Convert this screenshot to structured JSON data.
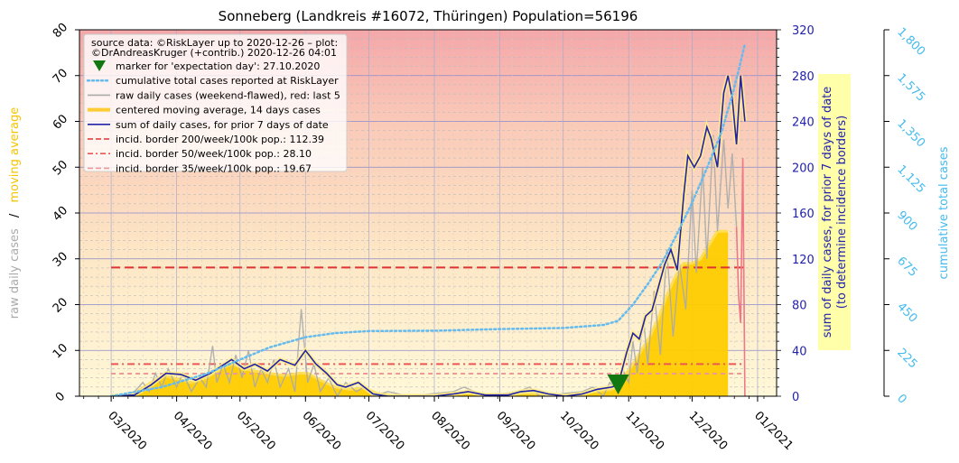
{
  "chart_data": {
    "type": "line",
    "title": "Sonneberg (Landkreis #16072, Thüringen) Population=56196",
    "x_ticks": [
      "03/2020",
      "04/2020",
      "05/2020",
      "06/2020",
      "07/2020",
      "08/2020",
      "09/2020",
      "10/2020",
      "11/2020",
      "12/2020",
      "01/2021"
    ],
    "x_range": [
      "2020-02-15",
      "2021-01-10"
    ],
    "y_left": {
      "label_parts": [
        "raw daily cases",
        "/",
        "moving average"
      ],
      "label_colors": [
        "#aaaaaa",
        "#000000",
        "#f5c400"
      ],
      "ticks": [
        0,
        10,
        20,
        30,
        40,
        50,
        60,
        70,
        80
      ],
      "range": [
        0,
        80
      ]
    },
    "y_right": {
      "label_lines": [
        "sum of daily cases, for prior 7 days of date",
        "(to determine incidence borders)"
      ],
      "ticks": [
        0,
        40,
        80,
        120,
        160,
        200,
        240,
        280,
        320
      ],
      "range": [
        0,
        320
      ]
    },
    "y_right2": {
      "label": "cumulative total cases",
      "ticks": [
        "0",
        "225",
        "450",
        "675",
        "900",
        "1,125",
        "1,350",
        "1,575",
        "1,800"
      ],
      "range": [
        0,
        1800
      ]
    },
    "legend": {
      "source_lines": [
        "source data: ©RiskLayer up to 2020-12-26 – plot:",
        "©DrAndreasKruger (+contrib.) 2020-12-26 04:01"
      ],
      "entries": [
        {
          "label": "marker for 'expectation day': 27.10.2020",
          "kind": "marker",
          "color": "#117711"
        },
        {
          "label": "cumulative total cases reported at RiskLayer",
          "kind": "dotted",
          "color": "#66bbee"
        },
        {
          "label": "raw daily cases (weekend-flawed), red: last 5",
          "kind": "line",
          "color": "#aaaaaa"
        },
        {
          "label": "centered moving average, 14 days cases",
          "kind": "thick",
          "color": "#ffcc33"
        },
        {
          "label": "sum of daily cases, for prior 7 days of date",
          "kind": "line",
          "color": "#2222aa"
        },
        {
          "label": "incid. border 200/week/100k pop.: 112.39",
          "kind": "dashed",
          "color": "#dd3333"
        },
        {
          "label": "incid. border 50/week/100k pop.: 28.10",
          "kind": "dashdot",
          "color": "#ee5555"
        },
        {
          "label": "incid. border 35/week/100k pop.: 19.67",
          "kind": "dashed",
          "color": "#ee9999"
        }
      ]
    },
    "incidence_borders": [
      {
        "name": "200/week/100k",
        "value": 112.39,
        "color": "#dd3333"
      },
      {
        "name": "50/week/100k",
        "value": 28.1,
        "color": "#ee5555"
      },
      {
        "name": "35/week/100k",
        "value": 19.67,
        "color": "#ee9999"
      }
    ],
    "expectation_day": "2020-10-27",
    "series": [
      {
        "name": "centered moving average, 14 days cases",
        "axis": "left",
        "points": [
          [
            "2020-03-01",
            0
          ],
          [
            "2020-03-10",
            0.3
          ],
          [
            "2020-03-15",
            1.5
          ],
          [
            "2020-03-20",
            3
          ],
          [
            "2020-03-26",
            4.5
          ],
          [
            "2020-04-01",
            3.8
          ],
          [
            "2020-04-08",
            3
          ],
          [
            "2020-04-15",
            4
          ],
          [
            "2020-04-22",
            6
          ],
          [
            "2020-04-27",
            7
          ],
          [
            "2020-05-03",
            6
          ],
          [
            "2020-05-08",
            5.5
          ],
          [
            "2020-05-15",
            5
          ],
          [
            "2020-05-22",
            4.5
          ],
          [
            "2020-05-29",
            5
          ],
          [
            "2020-06-02",
            5
          ],
          [
            "2020-06-08",
            3.5
          ],
          [
            "2020-06-15",
            2
          ],
          [
            "2020-06-22",
            1.5
          ],
          [
            "2020-06-29",
            1.8
          ],
          [
            "2020-07-05",
            0.6
          ],
          [
            "2020-07-12",
            0.2
          ],
          [
            "2020-07-20",
            0.2
          ],
          [
            "2020-08-01",
            0.2
          ],
          [
            "2020-08-10",
            0.6
          ],
          [
            "2020-08-18",
            0.7
          ],
          [
            "2020-08-25",
            0.3
          ],
          [
            "2020-09-05",
            0.3
          ],
          [
            "2020-09-12",
            0.7
          ],
          [
            "2020-09-20",
            0.6
          ],
          [
            "2020-09-28",
            0.2
          ],
          [
            "2020-10-05",
            0.3
          ],
          [
            "2020-10-12",
            0.8
          ],
          [
            "2020-10-19",
            1.2
          ],
          [
            "2020-10-24",
            1.5
          ],
          [
            "2020-10-27",
            2
          ],
          [
            "2020-10-31",
            5
          ],
          [
            "2020-11-03",
            7
          ],
          [
            "2020-11-07",
            10
          ],
          [
            "2020-11-11",
            13
          ],
          [
            "2020-11-15",
            17
          ],
          [
            "2020-11-19",
            22
          ],
          [
            "2020-11-23",
            26
          ],
          [
            "2020-11-27",
            29
          ],
          [
            "2020-12-01",
            29
          ],
          [
            "2020-12-05",
            30
          ],
          [
            "2020-12-09",
            33
          ],
          [
            "2020-12-13",
            36
          ],
          [
            "2020-12-18",
            36
          ]
        ]
      },
      {
        "name": "raw daily cases (weekend-flawed), red: last 5",
        "axis": "left",
        "points": [
          [
            "2020-03-05",
            0
          ],
          [
            "2020-03-12",
            1
          ],
          [
            "2020-03-16",
            3
          ],
          [
            "2020-03-19",
            1
          ],
          [
            "2020-03-22",
            5
          ],
          [
            "2020-03-25",
            2
          ],
          [
            "2020-03-28",
            6
          ],
          [
            "2020-04-01",
            2
          ],
          [
            "2020-04-04",
            5
          ],
          [
            "2020-04-08",
            1
          ],
          [
            "2020-04-12",
            4
          ],
          [
            "2020-04-15",
            2
          ],
          [
            "2020-04-18",
            11
          ],
          [
            "2020-04-20",
            3
          ],
          [
            "2020-04-23",
            7
          ],
          [
            "2020-04-26",
            3
          ],
          [
            "2020-04-29",
            9
          ],
          [
            "2020-05-02",
            4
          ],
          [
            "2020-05-05",
            10
          ],
          [
            "2020-05-08",
            2
          ],
          [
            "2020-05-11",
            6
          ],
          [
            "2020-05-14",
            3
          ],
          [
            "2020-05-17",
            8
          ],
          [
            "2020-05-20",
            2
          ],
          [
            "2020-05-24",
            6
          ],
          [
            "2020-05-27",
            1
          ],
          [
            "2020-05-30",
            19
          ],
          [
            "2020-06-02",
            3
          ],
          [
            "2020-06-05",
            7
          ],
          [
            "2020-06-08",
            1
          ],
          [
            "2020-06-12",
            4
          ],
          [
            "2020-06-16",
            0
          ],
          [
            "2020-06-20",
            3
          ],
          [
            "2020-06-25",
            1
          ],
          [
            "2020-06-29",
            2
          ],
          [
            "2020-07-03",
            0
          ],
          [
            "2020-07-10",
            1
          ],
          [
            "2020-07-20",
            0
          ],
          [
            "2020-08-10",
            1
          ],
          [
            "2020-08-15",
            2
          ],
          [
            "2020-08-20",
            1
          ],
          [
            "2020-08-25",
            0
          ],
          [
            "2020-09-10",
            1
          ],
          [
            "2020-09-15",
            2
          ],
          [
            "2020-09-20",
            0
          ],
          [
            "2020-10-10",
            1
          ],
          [
            "2020-10-15",
            2
          ],
          [
            "2020-10-20",
            0
          ],
          [
            "2020-10-23",
            3
          ],
          [
            "2020-10-27",
            1
          ],
          [
            "2020-10-29",
            6
          ],
          [
            "2020-11-01",
            3
          ],
          [
            "2020-11-03",
            12
          ],
          [
            "2020-11-05",
            5
          ],
          [
            "2020-11-08",
            17
          ],
          [
            "2020-11-10",
            7
          ],
          [
            "2020-11-13",
            23
          ],
          [
            "2020-11-16",
            9
          ],
          [
            "2020-11-19",
            32
          ],
          [
            "2020-11-22",
            13
          ],
          [
            "2020-11-25",
            29
          ],
          [
            "2020-11-28",
            19
          ],
          [
            "2020-12-01",
            45
          ],
          [
            "2020-12-03",
            27
          ],
          [
            "2020-12-06",
            50
          ],
          [
            "2020-12-08",
            30
          ],
          [
            "2020-12-11",
            57
          ],
          [
            "2020-12-13",
            36
          ],
          [
            "2020-12-16",
            56
          ],
          [
            "2020-12-18",
            41
          ],
          [
            "2020-12-20",
            53
          ],
          [
            "2020-12-22",
            37
          ]
        ]
      },
      {
        "name": "raw daily cases, last 5",
        "axis": "left",
        "points": [
          [
            "2020-12-22",
            37
          ],
          [
            "2020-12-23",
            22
          ],
          [
            "2020-12-24",
            16
          ],
          [
            "2020-12-25",
            52
          ],
          [
            "2020-12-26",
            0
          ]
        ]
      },
      {
        "name": "sum of daily cases, for prior 7 days of date",
        "axis": "right",
        "points": [
          [
            "2020-03-01",
            0
          ],
          [
            "2020-03-12",
            1
          ],
          [
            "2020-03-20",
            10
          ],
          [
            "2020-03-27",
            20
          ],
          [
            "2020-04-03",
            19
          ],
          [
            "2020-04-10",
            14
          ],
          [
            "2020-04-17",
            20
          ],
          [
            "2020-04-22",
            26
          ],
          [
            "2020-04-27",
            32
          ],
          [
            "2020-05-03",
            24
          ],
          [
            "2020-05-08",
            28
          ],
          [
            "2020-05-14",
            22
          ],
          [
            "2020-05-20",
            32
          ],
          [
            "2020-05-27",
            27
          ],
          [
            "2020-06-01",
            40
          ],
          [
            "2020-06-06",
            28
          ],
          [
            "2020-06-11",
            20
          ],
          [
            "2020-06-16",
            10
          ],
          [
            "2020-06-20",
            8
          ],
          [
            "2020-06-26",
            12
          ],
          [
            "2020-07-03",
            2
          ],
          [
            "2020-07-10",
            0
          ],
          [
            "2020-08-01",
            0
          ],
          [
            "2020-08-10",
            2
          ],
          [
            "2020-08-17",
            4
          ],
          [
            "2020-08-25",
            1
          ],
          [
            "2020-09-05",
            1
          ],
          [
            "2020-09-11",
            4
          ],
          [
            "2020-09-17",
            5
          ],
          [
            "2020-09-24",
            2
          ],
          [
            "2020-10-02",
            0
          ],
          [
            "2020-10-10",
            2
          ],
          [
            "2020-10-17",
            6
          ],
          [
            "2020-10-24",
            8
          ],
          [
            "2020-10-27",
            10
          ],
          [
            "2020-10-31",
            38
          ],
          [
            "2020-11-03",
            55
          ],
          [
            "2020-11-06",
            50
          ],
          [
            "2020-11-09",
            70
          ],
          [
            "2020-11-12",
            75
          ],
          [
            "2020-11-15",
            95
          ],
          [
            "2020-11-18",
            115
          ],
          [
            "2020-11-21",
            128
          ],
          [
            "2020-11-24",
            110
          ],
          [
            "2020-11-27",
            175
          ],
          [
            "2020-11-29",
            210
          ],
          [
            "2020-12-02",
            200
          ],
          [
            "2020-12-05",
            210
          ],
          [
            "2020-12-08",
            235
          ],
          [
            "2020-12-10",
            225
          ],
          [
            "2020-12-13",
            200
          ],
          [
            "2020-12-16",
            265
          ],
          [
            "2020-12-18",
            280
          ],
          [
            "2020-12-20",
            260
          ],
          [
            "2020-12-22",
            220
          ],
          [
            "2020-12-24",
            280
          ],
          [
            "2020-12-26",
            240
          ]
        ]
      },
      {
        "name": "cumulative total cases reported at RiskLayer",
        "axis": "right2",
        "points": [
          [
            "2020-03-01",
            0
          ],
          [
            "2020-03-25",
            45
          ],
          [
            "2020-04-15",
            110
          ],
          [
            "2020-05-01",
            180
          ],
          [
            "2020-05-15",
            240
          ],
          [
            "2020-06-01",
            290
          ],
          [
            "2020-06-15",
            310
          ],
          [
            "2020-07-01",
            320
          ],
          [
            "2020-08-01",
            322
          ],
          [
            "2020-09-01",
            330
          ],
          [
            "2020-10-01",
            335
          ],
          [
            "2020-10-20",
            350
          ],
          [
            "2020-10-27",
            370
          ],
          [
            "2020-11-03",
            450
          ],
          [
            "2020-11-10",
            550
          ],
          [
            "2020-11-17",
            660
          ],
          [
            "2020-11-24",
            800
          ],
          [
            "2020-12-01",
            950
          ],
          [
            "2020-12-08",
            1120
          ],
          [
            "2020-12-15",
            1300
          ],
          [
            "2020-12-20",
            1480
          ],
          [
            "2020-12-23",
            1600
          ],
          [
            "2020-12-26",
            1730
          ]
        ]
      }
    ],
    "grid": true
  }
}
